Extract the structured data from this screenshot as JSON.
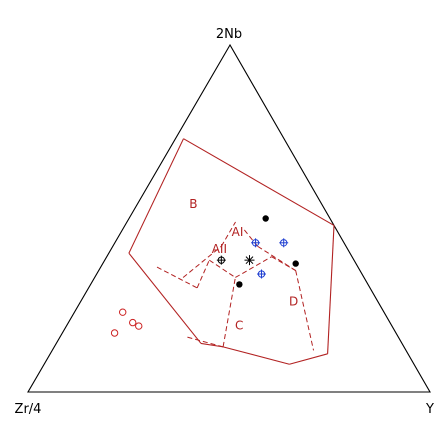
{
  "chart_data": {
    "type": "scatter",
    "subtype": "ternary",
    "title": "",
    "vertex_labels": {
      "top": "2Nb",
      "left": "Zr/4",
      "right": "Y"
    },
    "region_labels": [
      {
        "label": "AI",
        "a": 0.25,
        "b": 0.29,
        "c": 0.46
      },
      {
        "label": "AII",
        "a": 0.32,
        "b": 0.27,
        "c": 0.41
      },
      {
        "label": "B",
        "a": 0.32,
        "b": 0.14,
        "c": 0.54
      },
      {
        "label": "C",
        "a": 0.38,
        "b": 0.43,
        "c": 0.19
      },
      {
        "label": "D",
        "a": 0.21,
        "b": 0.53,
        "c": 0.26
      }
    ],
    "series": [
      {
        "marker": "open-circle",
        "color": "#cc2222",
        "points": [
          {
            "a": 0.65,
            "b": 0.12,
            "c": 0.23
          },
          {
            "a": 0.7,
            "b": 0.13,
            "c": 0.17
          },
          {
            "a": 0.64,
            "b": 0.16,
            "c": 0.2
          },
          {
            "a": 0.63,
            "b": 0.18,
            "c": 0.19
          }
        ]
      },
      {
        "marker": "filled-circle",
        "color": "#000000",
        "points": [
          {
            "a": 0.16,
            "b": 0.34,
            "c": 0.5
          },
          {
            "a": 0.32,
            "b": 0.37,
            "c": 0.31
          },
          {
            "a": 0.15,
            "b": 0.48,
            "c": 0.37
          }
        ]
      },
      {
        "marker": "crossed-circle",
        "color": "#1f3fd1",
        "points": [
          {
            "a": 0.22,
            "b": 0.35,
            "c": 0.43
          },
          {
            "a": 0.25,
            "b": 0.41,
            "c": 0.34
          },
          {
            "a": 0.15,
            "b": 0.42,
            "c": 0.43
          }
        ]
      },
      {
        "marker": "crossed-circle",
        "color": "#000000",
        "points": [
          {
            "a": 0.33,
            "b": 0.29,
            "c": 0.38
          }
        ]
      },
      {
        "marker": "asterisk",
        "color": "#000000",
        "points": [
          {
            "a": 0.26,
            "b": 0.36,
            "c": 0.38
          }
        ]
      }
    ],
    "field_boundaries": {
      "color": "#b22222",
      "solid": [
        [
          {
            "a": 0.55,
            "b": 0.05,
            "c": 0.4
          },
          {
            "a": 0.5,
            "b": 0.36,
            "c": 0.14
          }
        ],
        [
          {
            "a": 0.55,
            "b": 0.05,
            "c": 0.4
          },
          {
            "a": 0.25,
            "b": 0.02,
            "c": 0.73
          }
        ],
        [
          {
            "a": 0.25,
            "b": 0.02,
            "c": 0.73
          },
          {
            "a": 0.0,
            "b": 0.52,
            "c": 0.48
          }
        ],
        [
          {
            "a": 0.5,
            "b": 0.36,
            "c": 0.14
          },
          {
            "a": 0.45,
            "b": 0.42,
            "c": 0.13
          }
        ],
        [
          {
            "a": 0.45,
            "b": 0.42,
            "c": 0.13
          },
          {
            "a": 0.31,
            "b": 0.61,
            "c": 0.08
          }
        ],
        [
          {
            "a": 0.31,
            "b": 0.61,
            "c": 0.08
          },
          {
            "a": 0.2,
            "b": 0.69,
            "c": 0.11
          }
        ],
        [
          {
            "a": 0.2,
            "b": 0.69,
            "c": 0.11
          },
          {
            "a": 0.0,
            "b": 0.52,
            "c": 0.48
          }
        ]
      ],
      "dashed": [
        [
          {
            "a": 0.45,
            "b": 0.22,
            "c": 0.33
          },
          {
            "a": 0.31,
            "b": 0.27,
            "c": 0.42
          }
        ],
        [
          {
            "a": 0.31,
            "b": 0.27,
            "c": 0.42
          },
          {
            "a": 0.24,
            "b": 0.27,
            "c": 0.49
          }
        ],
        [
          {
            "a": 0.5,
            "b": 0.14,
            "c": 0.36
          },
          {
            "a": 0.43,
            "b": 0.27,
            "c": 0.3
          }
        ],
        [
          {
            "a": 0.43,
            "b": 0.27,
            "c": 0.3
          },
          {
            "a": 0.36,
            "b": 0.26,
            "c": 0.38
          }
        ],
        [
          {
            "a": 0.36,
            "b": 0.26,
            "c": 0.38
          },
          {
            "a": 0.32,
            "b": 0.35,
            "c": 0.33
          }
        ],
        [
          {
            "a": 0.32,
            "b": 0.35,
            "c": 0.33
          },
          {
            "a": 0.2,
            "b": 0.41,
            "c": 0.39
          }
        ],
        [
          {
            "a": 0.2,
            "b": 0.41,
            "c": 0.39
          },
          {
            "a": 0.16,
            "b": 0.49,
            "c": 0.35
          }
        ],
        [
          {
            "a": 0.16,
            "b": 0.49,
            "c": 0.35
          },
          {
            "a": 0.23,
            "b": 0.65,
            "c": 0.12
          }
        ],
        [
          {
            "a": 0.16,
            "b": 0.49,
            "c": 0.35
          },
          {
            "a": 0.22,
            "b": 0.36,
            "c": 0.42
          }
        ],
        [
          {
            "a": 0.22,
            "b": 0.36,
            "c": 0.42
          },
          {
            "a": 0.23,
            "b": 0.3,
            "c": 0.47
          }
        ],
        [
          {
            "a": 0.45,
            "b": 0.42,
            "c": 0.13
          },
          {
            "a": 0.53,
            "b": 0.31,
            "c": 0.16
          }
        ],
        [
          {
            "a": 0.45,
            "b": 0.42,
            "c": 0.13
          },
          {
            "a": 0.32,
            "b": 0.35,
            "c": 0.33
          }
        ]
      ]
    }
  }
}
